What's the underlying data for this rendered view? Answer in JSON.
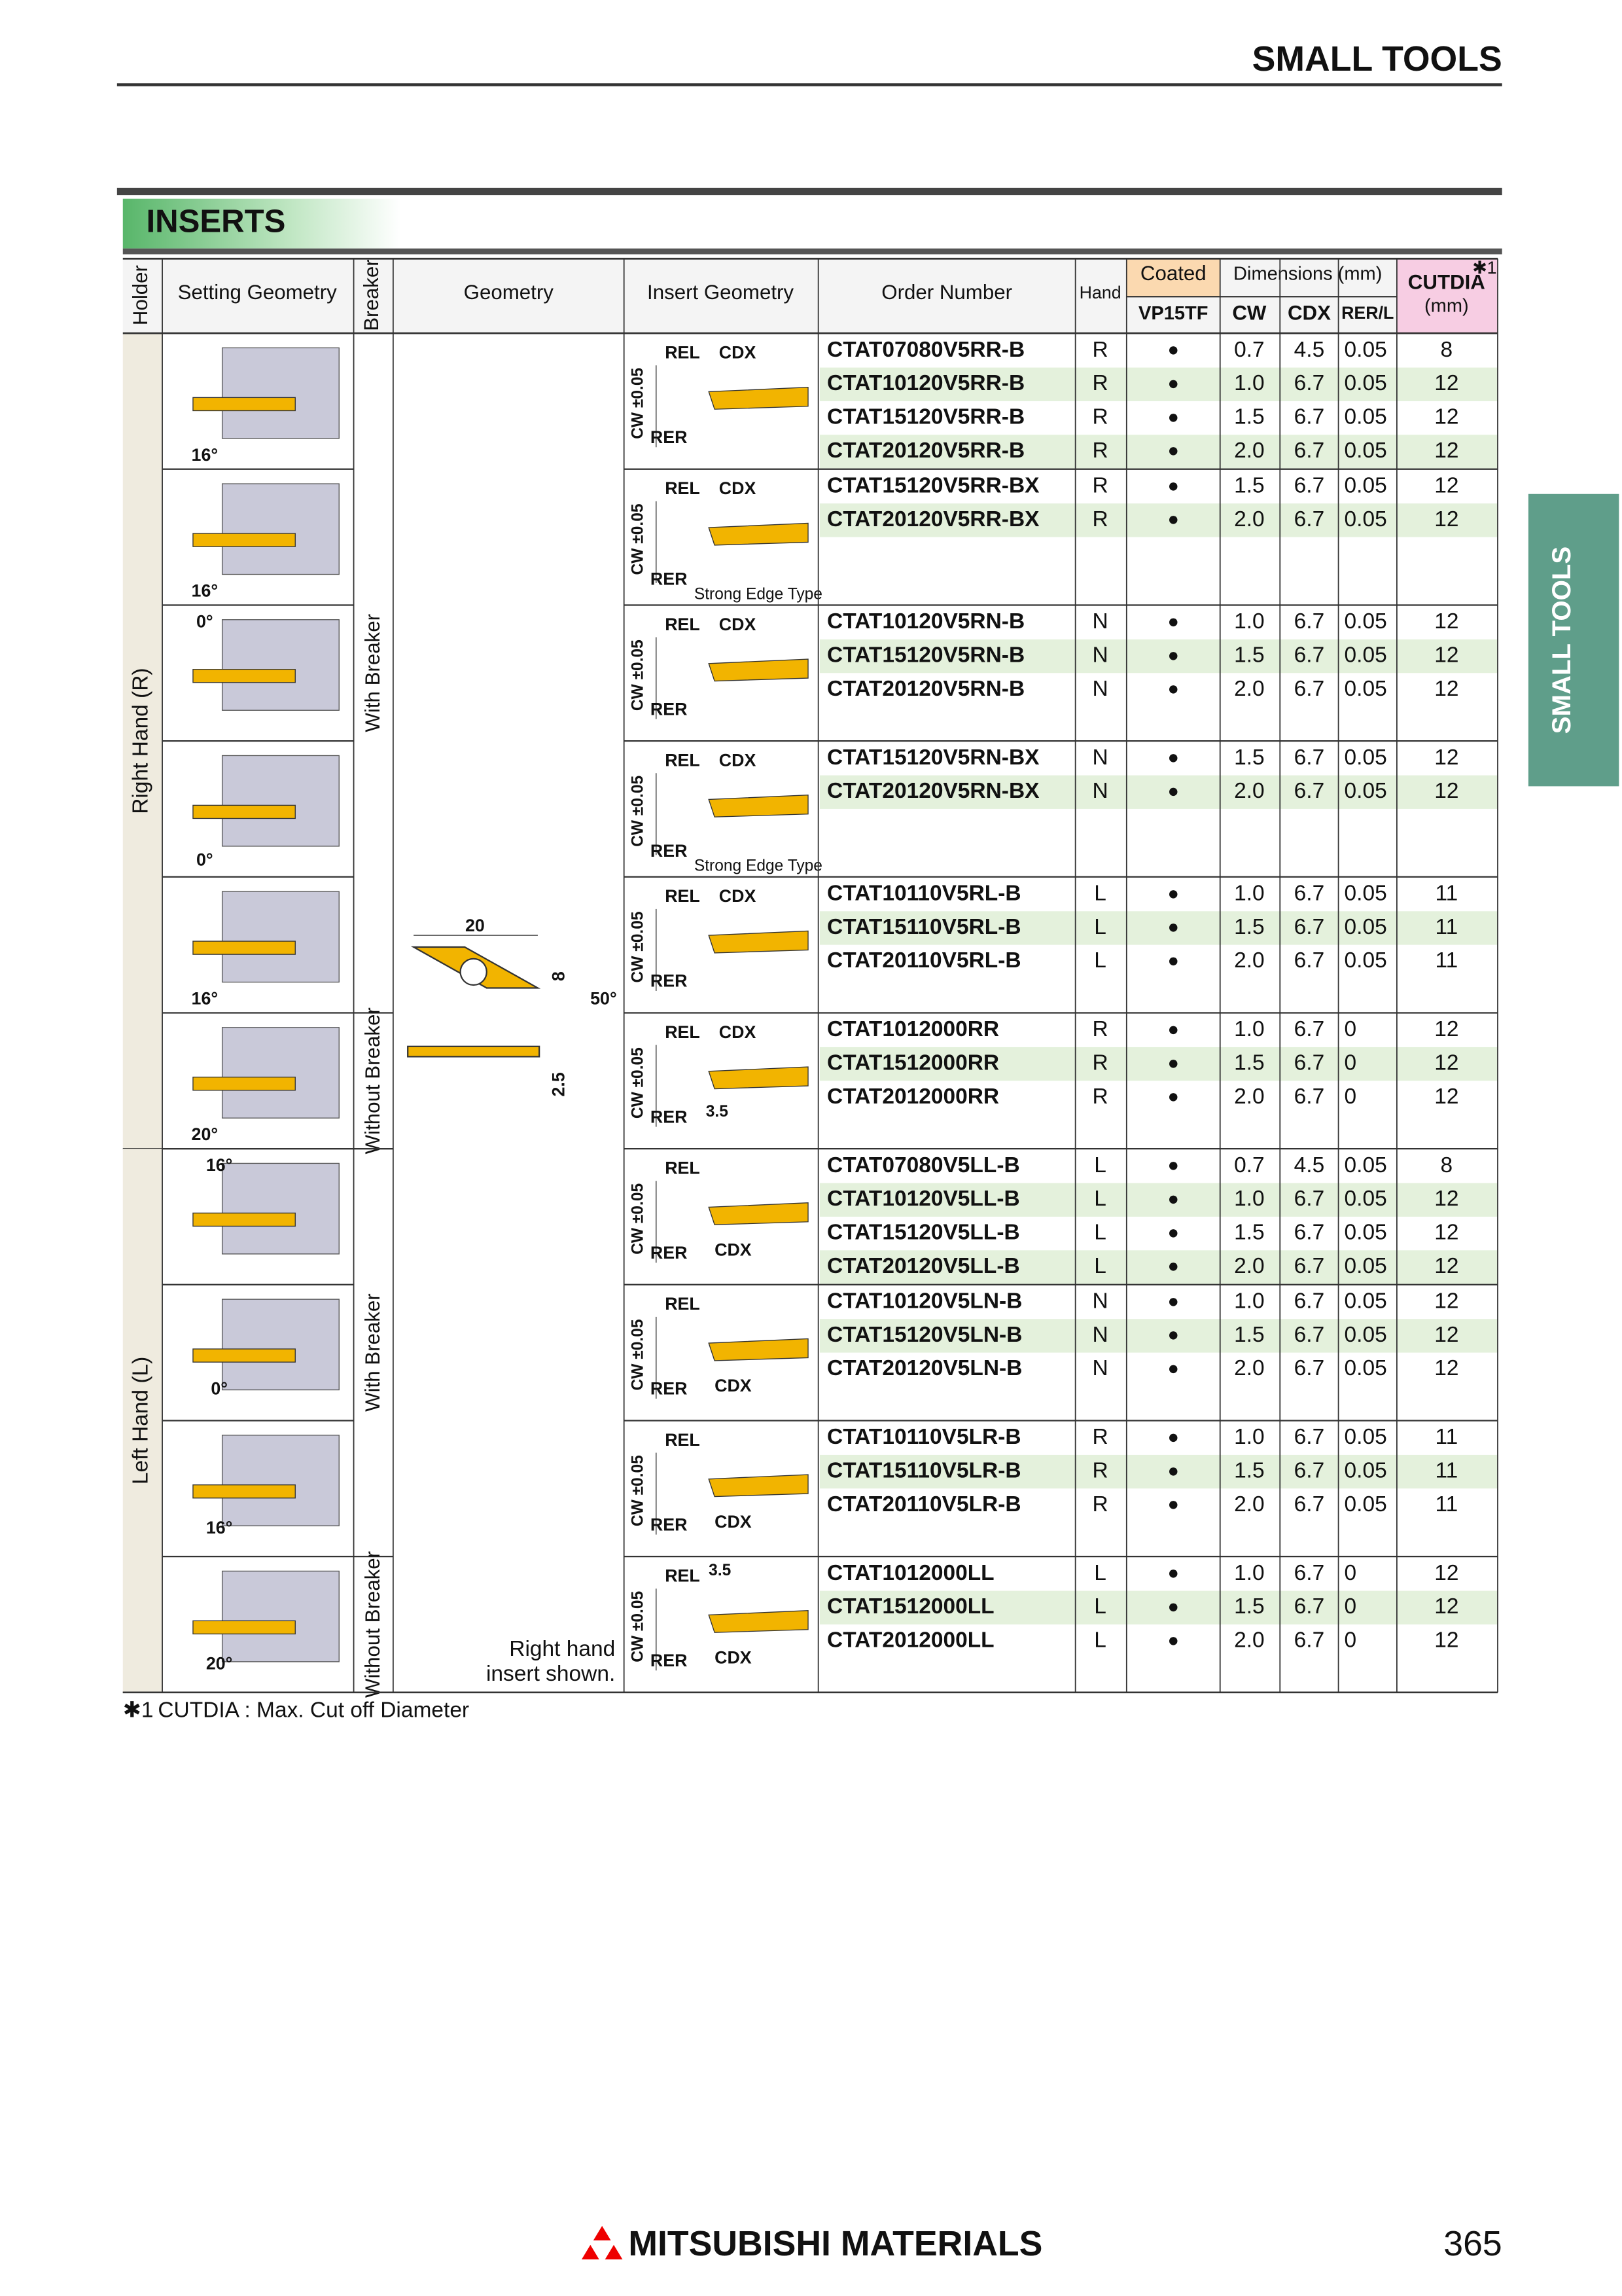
{
  "header": {
    "title": "SMALL TOOLS"
  },
  "side_tab": "SMALL TOOLS",
  "section_title": "INSERTS",
  "table": {
    "headers": {
      "holder": "Holder",
      "setting_geometry": "Setting Geometry",
      "breaker": "Breaker",
      "geometry": "Geometry",
      "insert_geometry": "Insert Geometry",
      "order_number": "Order Number",
      "hand": "Hand",
      "coated": "Coated",
      "grade": "VP15TF",
      "dimensions": "Dimensions (mm)",
      "cw": "CW",
      "cdx": "CDX",
      "rer": "RER/L",
      "cutdia": "CUTDIA",
      "cutdia_note": "✱1",
      "cutdia_unit": "(mm)"
    },
    "groups": [
      {
        "label": "Right Hand (R)",
        "breakers": [
          {
            "label": "With Breaker",
            "blocks": [
              {
                "angle": "16°",
                "insert_labels": [
                  "REL",
                  "CDX",
                  "CW ±0.05",
                  "RER"
                ],
                "rows": [
                  [
                    "CTAT07080V5RR-B",
                    "R",
                    "●",
                    "0.7",
                    "4.5",
                    "0.05",
                    "8"
                  ],
                  [
                    "CTAT10120V5RR-B",
                    "R",
                    "●",
                    "1.0",
                    "6.7",
                    "0.05",
                    "12"
                  ],
                  [
                    "CTAT15120V5RR-B",
                    "R",
                    "●",
                    "1.5",
                    "6.7",
                    "0.05",
                    "12"
                  ],
                  [
                    "CTAT20120V5RR-B",
                    "R",
                    "●",
                    "2.0",
                    "6.7",
                    "0.05",
                    "12"
                  ]
                ]
              },
              {
                "angle": "16°",
                "insert_labels": [
                  "REL",
                  "CDX",
                  "CW ±0.05",
                  "RER",
                  "Strong Edge Type"
                ],
                "rows": [
                  [
                    "CTAT15120V5RR-BX",
                    "R",
                    "●",
                    "1.5",
                    "6.7",
                    "0.05",
                    "12"
                  ],
                  [
                    "CTAT20120V5RR-BX",
                    "R",
                    "●",
                    "2.0",
                    "6.7",
                    "0.05",
                    "12"
                  ]
                ]
              },
              {
                "angle": "0°",
                "insert_labels": [
                  "REL",
                  "CDX",
                  "CW ±0.05",
                  "RER"
                ],
                "rows": [
                  [
                    "CTAT10120V5RN-B",
                    "N",
                    "●",
                    "1.0",
                    "6.7",
                    "0.05",
                    "12"
                  ],
                  [
                    "CTAT15120V5RN-B",
                    "N",
                    "●",
                    "1.5",
                    "6.7",
                    "0.05",
                    "12"
                  ],
                  [
                    "CTAT20120V5RN-B",
                    "N",
                    "●",
                    "2.0",
                    "6.7",
                    "0.05",
                    "12"
                  ]
                ]
              },
              {
                "angle": "0°",
                "insert_labels": [
                  "REL",
                  "CDX",
                  "CW ±0.05",
                  "RER",
                  "Strong Edge Type"
                ],
                "rows": [
                  [
                    "CTAT15120V5RN-BX",
                    "N",
                    "●",
                    "1.5",
                    "6.7",
                    "0.05",
                    "12"
                  ],
                  [
                    "CTAT20120V5RN-BX",
                    "N",
                    "●",
                    "2.0",
                    "6.7",
                    "0.05",
                    "12"
                  ]
                ]
              },
              {
                "angle": "16°",
                "insert_labels": [
                  "REL",
                  "CDX",
                  "CW ±0.05",
                  "RER"
                ],
                "rows": [
                  [
                    "CTAT10110V5RL-B",
                    "L",
                    "●",
                    "1.0",
                    "6.7",
                    "0.05",
                    "11"
                  ],
                  [
                    "CTAT15110V5RL-B",
                    "L",
                    "●",
                    "1.5",
                    "6.7",
                    "0.05",
                    "11"
                  ],
                  [
                    "CTAT20110V5RL-B",
                    "L",
                    "●",
                    "2.0",
                    "6.7",
                    "0.05",
                    "11"
                  ]
                ]
              }
            ]
          },
          {
            "label": "Without Breaker",
            "blocks": [
              {
                "angle": "20°",
                "insert_labels": [
                  "REL",
                  "CDX",
                  "CW ±0.05",
                  "RER",
                  "3.5"
                ],
                "rows": [
                  [
                    "CTAT1012000RR",
                    "R",
                    "●",
                    "1.0",
                    "6.7",
                    "0",
                    "12"
                  ],
                  [
                    "CTAT1512000RR",
                    "R",
                    "●",
                    "1.5",
                    "6.7",
                    "0",
                    "12"
                  ],
                  [
                    "CTAT2012000RR",
                    "R",
                    "●",
                    "2.0",
                    "6.7",
                    "0",
                    "12"
                  ]
                ]
              }
            ]
          }
        ]
      },
      {
        "label": "Left Hand (L)",
        "breakers": [
          {
            "label": "With Breaker",
            "blocks": [
              {
                "angle": "16°",
                "insert_labels": [
                  "REL",
                  "CW ±0.05",
                  "RER",
                  "CDX"
                ],
                "rows": [
                  [
                    "CTAT07080V5LL-B",
                    "L",
                    "●",
                    "0.7",
                    "4.5",
                    "0.05",
                    "8"
                  ],
                  [
                    "CTAT10120V5LL-B",
                    "L",
                    "●",
                    "1.0",
                    "6.7",
                    "0.05",
                    "12"
                  ],
                  [
                    "CTAT15120V5LL-B",
                    "L",
                    "●",
                    "1.5",
                    "6.7",
                    "0.05",
                    "12"
                  ],
                  [
                    "CTAT20120V5LL-B",
                    "L",
                    "●",
                    "2.0",
                    "6.7",
                    "0.05",
                    "12"
                  ]
                ]
              },
              {
                "angle": "0°",
                "insert_labels": [
                  "REL",
                  "CW ±0.05",
                  "RER",
                  "CDX"
                ],
                "rows": [
                  [
                    "CTAT10120V5LN-B",
                    "N",
                    "●",
                    "1.0",
                    "6.7",
                    "0.05",
                    "12"
                  ],
                  [
                    "CTAT15120V5LN-B",
                    "N",
                    "●",
                    "1.5",
                    "6.7",
                    "0.05",
                    "12"
                  ],
                  [
                    "CTAT20120V5LN-B",
                    "N",
                    "●",
                    "2.0",
                    "6.7",
                    "0.05",
                    "12"
                  ]
                ]
              },
              {
                "angle": "16°",
                "insert_labels": [
                  "REL",
                  "CW ±0.05",
                  "RER",
                  "CDX"
                ],
                "rows": [
                  [
                    "CTAT10110V5LR-B",
                    "R",
                    "●",
                    "1.0",
                    "6.7",
                    "0.05",
                    "11"
                  ],
                  [
                    "CTAT15110V5LR-B",
                    "R",
                    "●",
                    "1.5",
                    "6.7",
                    "0.05",
                    "11"
                  ],
                  [
                    "CTAT20110V5LR-B",
                    "R",
                    "●",
                    "2.0",
                    "6.7",
                    "0.05",
                    "11"
                  ]
                ]
              }
            ]
          },
          {
            "label": "Without Breaker",
            "blocks": [
              {
                "angle": "20°",
                "insert_labels": [
                  "REL",
                  "3.5",
                  "CW ±0.05",
                  "RER",
                  "CDX"
                ],
                "rows": [
                  [
                    "CTAT1012000LL",
                    "L",
                    "●",
                    "1.0",
                    "6.7",
                    "0",
                    "12"
                  ],
                  [
                    "CTAT1512000LL",
                    "L",
                    "●",
                    "1.5",
                    "6.7",
                    "0",
                    "12"
                  ],
                  [
                    "CTAT2012000LL",
                    "L",
                    "●",
                    "2.0",
                    "6.7",
                    "0",
                    "12"
                  ]
                ]
              }
            ]
          }
        ]
      }
    ]
  },
  "geometry": {
    "length": "20",
    "height": "8",
    "angle": "50°",
    "thickness": "2.5",
    "note": [
      "Right hand",
      "insert shown."
    ]
  },
  "footnote": {
    "mark": "✱1",
    "text": "CUTDIA : Max. Cut off Diameter"
  },
  "footer": {
    "brand": "MITSUBISHI MATERIALS",
    "page": "365"
  }
}
